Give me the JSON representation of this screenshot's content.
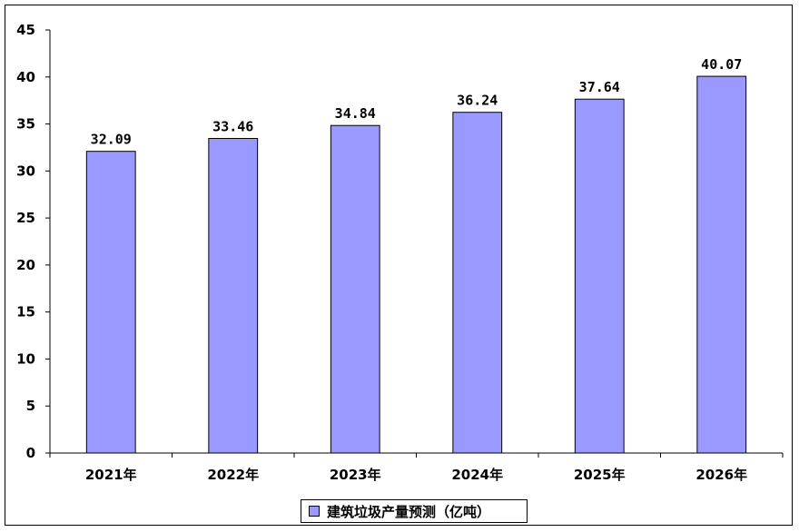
{
  "chart_data": {
    "type": "bar",
    "categories": [
      "2021年",
      "2022年",
      "2023年",
      "2024年",
      "2025年",
      "2026年"
    ],
    "series": [
      {
        "name": "建筑垃圾产量预测（亿吨）",
        "values": [
          32.09,
          33.46,
          34.84,
          36.24,
          37.64,
          40.07
        ]
      }
    ],
    "data_labels": [
      "32.09",
      "33.46",
      "34.84",
      "36.24",
      "37.64",
      "40.07"
    ],
    "ylim": [
      0,
      45
    ],
    "yticks": [
      0,
      5,
      10,
      15,
      20,
      25,
      30,
      35,
      40,
      45
    ],
    "title": "",
    "xlabel": "",
    "ylabel": "",
    "grid": false,
    "legend_position": "bottom",
    "bar_color": "#9999ff",
    "bar_edge_color": "#000000"
  }
}
